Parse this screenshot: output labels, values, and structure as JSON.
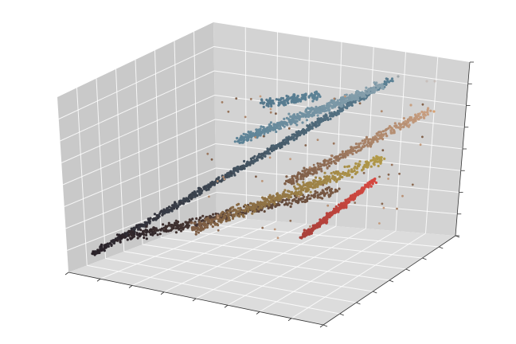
{
  "chart_data": {
    "type": "scatter",
    "dimensions": 3,
    "title": "",
    "xlabel": "",
    "ylabel": "",
    "zlabel": "",
    "tick_labels_shown": false,
    "grid": true,
    "legend": "none",
    "pane_colors": {
      "left": "#c9c9c9",
      "back": "#d3d3d3",
      "floor": "#dcdcdc"
    },
    "axis_ranges": {
      "x": [
        0,
        1
      ],
      "y": [
        0,
        1
      ],
      "z": [
        0,
        1
      ]
    },
    "point_colors": {
      "dark_end": "#2a2228",
      "blue_cluster": "#5c8296",
      "gold_cluster": "#b29a48",
      "tan_cluster": "#c9a082",
      "red_cluster": "#d64840",
      "brown_mid": "#7a5a44"
    },
    "series": [
      {
        "color": "#2a2228",
        "note_point_count": 0,
        "points": [
          [
            0.0,
            0.0,
            0.02
          ],
          [
            0.03,
            0.01,
            0.05
          ],
          [
            0.06,
            0.02,
            0.08
          ],
          [
            0.09,
            0.02,
            0.11
          ],
          [
            0.12,
            0.03,
            0.14
          ],
          [
            0.15,
            0.04,
            0.17
          ],
          [
            0.18,
            0.05,
            0.2
          ],
          [
            0.21,
            0.06,
            0.23
          ],
          [
            0.24,
            0.07,
            0.26
          ],
          [
            0.27,
            0.08,
            0.29
          ],
          [
            0.3,
            0.09,
            0.32
          ],
          [
            0.33,
            0.1,
            0.35
          ],
          [
            0.36,
            0.11,
            0.38
          ],
          [
            0.39,
            0.12,
            0.41
          ],
          [
            0.42,
            0.13,
            0.44
          ],
          [
            0.45,
            0.14,
            0.47
          ],
          [
            0.48,
            0.15,
            0.5
          ],
          [
            0.51,
            0.16,
            0.53
          ],
          [
            0.54,
            0.17,
            0.56
          ],
          [
            0.57,
            0.18,
            0.59
          ],
          [
            0.6,
            0.19,
            0.62
          ],
          [
            0.63,
            0.2,
            0.65
          ],
          [
            0.66,
            0.21,
            0.68
          ],
          [
            0.69,
            0.22,
            0.71
          ],
          [
            0.72,
            0.23,
            0.74
          ],
          [
            0.75,
            0.24,
            0.77
          ],
          [
            0.78,
            0.25,
            0.8
          ],
          [
            0.81,
            0.26,
            0.83
          ],
          [
            0.84,
            0.27,
            0.86
          ],
          [
            0.87,
            0.28,
            0.89
          ]
        ]
      }
    ]
  }
}
